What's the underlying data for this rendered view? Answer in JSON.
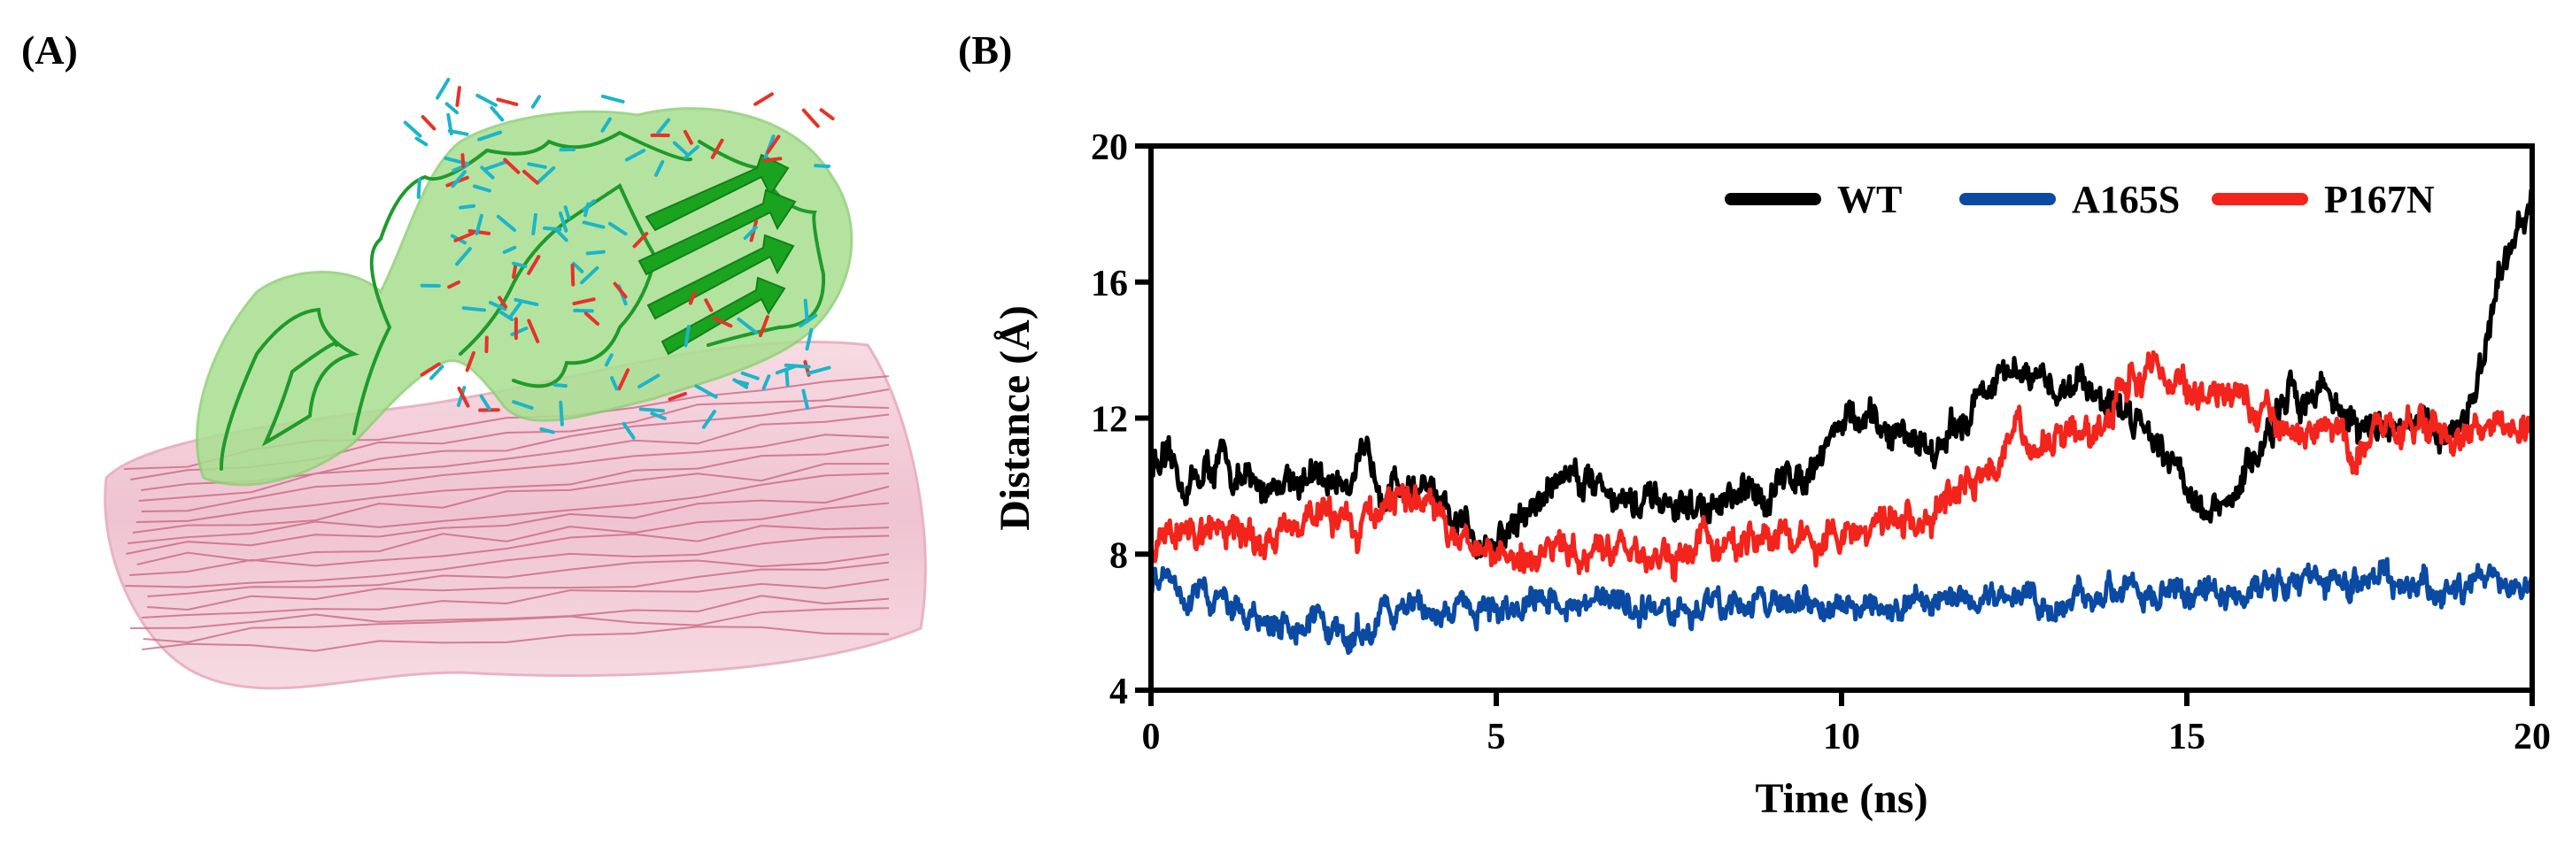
{
  "panels": {
    "a": {
      "label": "(A)"
    },
    "b": {
      "label": "(B)"
    }
  },
  "colors": {
    "wt": "#000000",
    "a165s": "#0a4aa3",
    "p167n": "#f2241c",
    "protein": "#3fb83c",
    "protein_surface": "#9fdc86",
    "fibril": "#d98aa4",
    "fibril_surface": "#f2cbd7",
    "glycan_c": "#1cb5c8",
    "glycan_o": "#e6322a"
  },
  "chart_data": {
    "type": "line",
    "xlabel": "Time (ns)",
    "ylabel": "Distance (Å)",
    "xlim": [
      0,
      20
    ],
    "ylim": [
      4,
      20
    ],
    "xticks": [
      0,
      5,
      10,
      15,
      20
    ],
    "yticks": [
      4,
      8,
      12,
      16,
      20
    ],
    "grid": false,
    "legend": "top-right",
    "series": [
      {
        "name": "WT",
        "color": "#000000",
        "points": [
          [
            0,
            10.8
          ],
          [
            0.5,
            10.0
          ],
          [
            1,
            10.7
          ],
          [
            1.5,
            9.8
          ],
          [
            2,
            10.4
          ],
          [
            2.5,
            10.0
          ],
          [
            3,
            10.6
          ],
          [
            3.5,
            10.2
          ],
          [
            4,
            9.9
          ],
          [
            4.3,
            8.8
          ],
          [
            4.7,
            8.6
          ],
          [
            5,
            8.4
          ],
          [
            5.3,
            8.9
          ],
          [
            5.6,
            9.5
          ],
          [
            6,
            10.5
          ],
          [
            6.5,
            10.2
          ],
          [
            7,
            9.4
          ],
          [
            7.5,
            9.3
          ],
          [
            8,
            9.3
          ],
          [
            8.5,
            9.5
          ],
          [
            9,
            9.9
          ],
          [
            9.5,
            10.6
          ],
          [
            10,
            12.0
          ],
          [
            10.5,
            11.6
          ],
          [
            11,
            11.5
          ],
          [
            11.5,
            11.1
          ],
          [
            12,
            12.8
          ],
          [
            12.5,
            13.2
          ],
          [
            13,
            12.8
          ],
          [
            13.5,
            13.2
          ],
          [
            14,
            12.3
          ],
          [
            14.5,
            11.8
          ],
          [
            15,
            10.2
          ],
          [
            15.3,
            9.0
          ],
          [
            15.6,
            9.3
          ],
          [
            16,
            11.0
          ],
          [
            16.5,
            12.5
          ],
          [
            17,
            13.0
          ],
          [
            17.5,
            11.5
          ],
          [
            18,
            12.0
          ],
          [
            18.5,
            11.5
          ],
          [
            19,
            12.0
          ],
          [
            19.3,
            13.5
          ],
          [
            19.5,
            15.5
          ],
          [
            19.8,
            17.5
          ],
          [
            20,
            18.0
          ]
        ],
        "noise": 0.55
      },
      {
        "name": "A165S",
        "color": "#0a4aa3",
        "points": [
          [
            0,
            7.3
          ],
          [
            0.3,
            7.8
          ],
          [
            0.5,
            6.8
          ],
          [
            1,
            6.5
          ],
          [
            2,
            6.0
          ],
          [
            3,
            5.7
          ],
          [
            3.5,
            6.2
          ],
          [
            4,
            6.5
          ],
          [
            5,
            6.4
          ],
          [
            6,
            6.6
          ],
          [
            7,
            6.5
          ],
          [
            8,
            6.4
          ],
          [
            9,
            6.6
          ],
          [
            10,
            6.4
          ],
          [
            11,
            6.3
          ],
          [
            12,
            6.6
          ],
          [
            13,
            6.6
          ],
          [
            14,
            6.9
          ],
          [
            15,
            7.0
          ],
          [
            16,
            7.1
          ],
          [
            17,
            7.2
          ],
          [
            18,
            7.2
          ],
          [
            19,
            7.2
          ],
          [
            20,
            7.1
          ]
        ],
        "noise": 0.45
      },
      {
        "name": "P167N",
        "color": "#f2241c",
        "points": [
          [
            0,
            8.2
          ],
          [
            0.3,
            8.8
          ],
          [
            0.6,
            8.4
          ],
          [
            1,
            8.6
          ],
          [
            1.5,
            8.4
          ],
          [
            2,
            8.6
          ],
          [
            2.5,
            9.0
          ],
          [
            3,
            8.7
          ],
          [
            3.5,
            9.2
          ],
          [
            4,
            10.2
          ],
          [
            4.3,
            8.6
          ],
          [
            5,
            8.2
          ],
          [
            6,
            8.1
          ],
          [
            7,
            8.1
          ],
          [
            7.5,
            7.8
          ],
          [
            8,
            8.3
          ],
          [
            8.5,
            8.0
          ],
          [
            9,
            8.7
          ],
          [
            9.5,
            8.3
          ],
          [
            10,
            8.5
          ],
          [
            10.5,
            8.6
          ],
          [
            11,
            8.9
          ],
          [
            11.5,
            9.6
          ],
          [
            12,
            10.6
          ],
          [
            12.5,
            11.6
          ],
          [
            13,
            10.8
          ],
          [
            13.5,
            11.8
          ],
          [
            14,
            12.6
          ],
          [
            14.5,
            13.6
          ],
          [
            15,
            13.0
          ],
          [
            15.5,
            12.6
          ],
          [
            16,
            12.0
          ],
          [
            16.5,
            11.4
          ],
          [
            17,
            11.8
          ],
          [
            17.5,
            11.0
          ],
          [
            18,
            11.8
          ],
          [
            18.5,
            11.4
          ],
          [
            19,
            11.7
          ],
          [
            19.5,
            12.0
          ],
          [
            20,
            11.4
          ]
        ],
        "noise": 0.55
      }
    ]
  }
}
